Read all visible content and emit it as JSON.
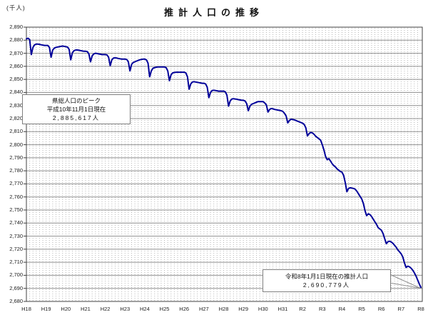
{
  "title": "推計人口の推移",
  "y_axis_unit": "(千人)",
  "annotations": {
    "peak": {
      "line1": "県総人口のピーク",
      "line2": "平成10年11月1日現在",
      "line3": "2,885,617人"
    },
    "latest": {
      "line1": "令和8年1月1日現在の推計人口",
      "line2": "2,690,779人"
    }
  },
  "chart_data": {
    "type": "line",
    "title": "推計人口の推移",
    "ylabel": "(千人)",
    "ylim": [
      2680,
      2890
    ],
    "y_tick_step": 10,
    "y_tick_labels": [
      "2,890",
      "2,880",
      "2,870",
      "2,860",
      "2,850",
      "2,840",
      "2,830",
      "2,820",
      "2,810",
      "2,800",
      "2,790",
      "2,780",
      "2,770",
      "2,760",
      "2,750",
      "2,740",
      "2,730",
      "2,720",
      "2,710",
      "2,700",
      "2,690",
      "2,680"
    ],
    "x_tick_labels": [
      "H18",
      "H19",
      "H20",
      "H21",
      "H22",
      "H23",
      "H24",
      "H25",
      "H26",
      "H27",
      "H28",
      "H29",
      "H30",
      "H31",
      "R2",
      "R3",
      "R4",
      "R5",
      "R6",
      "R7",
      "R8"
    ],
    "x_unit": "monthly estimated population, Jan H18 through Jan R8",
    "grid": "horizontal solid, vertical fine dotted",
    "legend": "none",
    "line_color": "#000099",
    "grid_color": "#909090",
    "dot_grid_color": "#b5b5b5",
    "frame_color": "#404040",
    "values": [
      2881,
      2881.5,
      2880.5,
      2869,
      2874.5,
      2876.5,
      2877,
      2877,
      2876.8,
      2876.5,
      2876.3,
      2876,
      2876,
      2876,
      2874.5,
      2867,
      2872.5,
      2874,
      2874.5,
      2874.8,
      2875,
      2875.3,
      2875.5,
      2875.3,
      2875,
      2874.8,
      2873,
      2865,
      2870.5,
      2872,
      2872.5,
      2872.5,
      2872.3,
      2872,
      2871.8,
      2871.5,
      2871.5,
      2871.3,
      2869.5,
      2863.5,
      2868,
      2869.5,
      2870,
      2869.8,
      2869.5,
      2869.3,
      2869,
      2869,
      2869,
      2868.8,
      2867,
      2860.5,
      2865,
      2866.3,
      2866.5,
      2866.3,
      2866,
      2865.8,
      2865.5,
      2865.5,
      2865.5,
      2865.3,
      2863.5,
      2856.5,
      2861.5,
      2863,
      2863.5,
      2864,
      2864.5,
      2865,
      2865.3,
      2865.5,
      2865.5,
      2865,
      2862.5,
      2852,
      2856.5,
      2858.5,
      2859,
      2859.3,
      2859.5,
      2859.5,
      2859.5,
      2859.5,
      2859.5,
      2859,
      2856.5,
      2849,
      2853.5,
      2855,
      2855.3,
      2855.5,
      2855.5,
      2855.5,
      2855.5,
      2855.5,
      2855.5,
      2855,
      2852,
      2842.5,
      2846.5,
      2848,
      2848.2,
      2848,
      2847.8,
      2847.5,
      2847.3,
      2847,
      2847,
      2846.5,
      2844,
      2836,
      2840,
      2841.5,
      2841.7,
      2841.5,
      2841.3,
      2841,
      2841,
      2841,
      2841,
      2840.5,
      2838,
      2829.5,
      2833.5,
      2835,
      2835.2,
      2835,
      2834.8,
      2834.5,
      2834.3,
      2834,
      2834,
      2833.5,
      2831.5,
      2826,
      2829.5,
      2831,
      2831.5,
      2832,
      2832.5,
      2833,
      2833,
      2833,
      2833,
      2832,
      2830.5,
      2825,
      2827,
      2827.7,
      2827.5,
      2827,
      2826.8,
      2826.5,
      2826.3,
      2826,
      2825.5,
      2824,
      2822,
      2816.7,
      2818.5,
      2819.5,
      2819.3,
      2819,
      2818.5,
      2818,
      2817.5,
      2817,
      2816.5,
      2815.5,
      2813,
      2806.7,
      2808.5,
      2809.4,
      2809,
      2808,
      2806.5,
      2805.5,
      2804.5,
      2803.5,
      2800,
      2796,
      2791,
      2788.5,
      2789.3,
      2787.5,
      2785.5,
      2784,
      2783,
      2781.5,
      2780.5,
      2779.5,
      2779,
      2776.5,
      2771,
      2764,
      2766.5,
      2767,
      2766.8,
      2766.5,
      2766,
      2764.5,
      2762.5,
      2760.5,
      2758.5,
      2755,
      2749.5,
      2745.6,
      2747.1,
      2746.5,
      2745,
      2743,
      2741,
      2739,
      2736.5,
      2735.5,
      2734.5,
      2732,
      2728,
      2724.2,
      2725.8,
      2726.1,
      2725.5,
      2724.5,
      2723,
      2721.5,
      2719.5,
      2718,
      2716.5,
      2714,
      2709.5,
      2706,
      2707,
      2706.5,
      2705.5,
      2704,
      2702,
      2699.5,
      2696.5,
      2693.5,
      2690.8
    ],
    "annotations": [
      {
        "text": "県総人口のピーク 平成10年11月1日現在 2,885,617人",
        "value": 2885.617
      },
      {
        "text": "令和8年1月1日現在の推計人口 2,690,779人",
        "value": 2690.779,
        "points_to": "last data point"
      }
    ]
  }
}
